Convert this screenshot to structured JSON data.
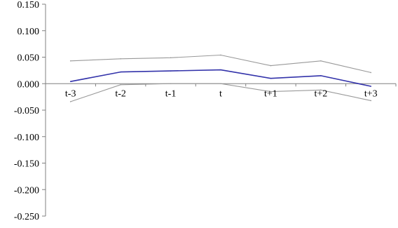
{
  "chart_data": {
    "type": "line",
    "title": "",
    "xlabel": "",
    "ylabel": "",
    "categories": [
      "t-3",
      "t-2",
      "t-1",
      "t",
      "t+1",
      "t+2",
      "t+3"
    ],
    "ylim": [
      -0.25,
      0.15
    ],
    "y_ticks": [
      "0.150",
      "0.100",
      "0.050",
      "0.000",
      "-0.050",
      "-0.100",
      "-0.150",
      "-0.200",
      "-0.250"
    ],
    "y_tick_values": [
      0.15,
      0.1,
      0.05,
      0.0,
      -0.05,
      -0.1,
      -0.15,
      -0.2,
      -0.25
    ],
    "grid": false,
    "legend": "none",
    "x_labels_position": "along zero line",
    "series": [
      {
        "role": "estimate",
        "color": "#3333aa",
        "values": [
          0.004,
          0.022,
          0.024,
          0.026,
          0.01,
          0.015,
          -0.005
        ]
      },
      {
        "role": "upper-band",
        "color": "#999999",
        "values": [
          0.043,
          0.047,
          0.049,
          0.054,
          0.034,
          0.043,
          0.021
        ]
      },
      {
        "role": "lower-band",
        "color": "#999999",
        "values": [
          -0.034,
          -0.002,
          0.0,
          0.0,
          -0.015,
          -0.012,
          -0.032
        ]
      }
    ]
  }
}
